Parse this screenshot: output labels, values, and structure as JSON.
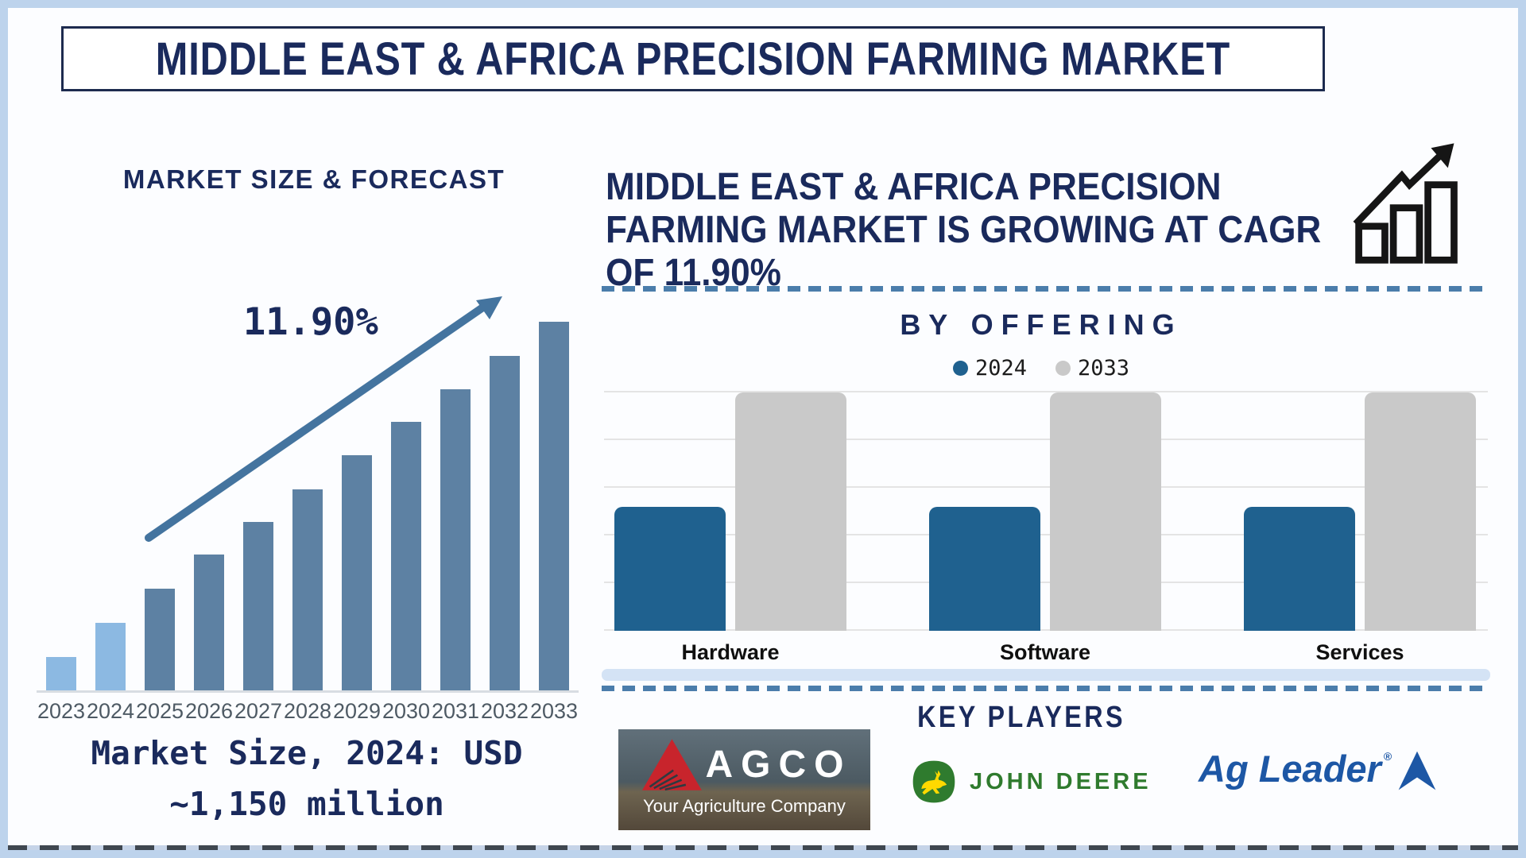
{
  "title_banner": {
    "text": "MIDDLE EAST & AFRICA PRECISION FARMING MARKET"
  },
  "colors": {
    "navy_text": "#1a2a5c",
    "frame_blue": "#bdd3ec",
    "forecast_bar_light": "#8cb9e2",
    "forecast_bar_dark": "#5d81a3",
    "arrow_blue": "#44749f",
    "dashed_line_blue": "#4b7dab",
    "offering_2024_blue": "#1f618f",
    "offering_2033_gray": "#c9c9c9",
    "gridline_gray": "#e4e4e4",
    "agco_red": "#c8242c",
    "john_deere_green": "#2f7b2e",
    "john_deere_yellow": "#ffd900",
    "ag_leader_blue": "#1d57a5",
    "growth_icon_black": "#151515"
  },
  "left_panel": {
    "cagr_label": "11.90%",
    "note_line1": "Market Size, 2024: USD",
    "note_line2": "~1,150 million"
  },
  "right_panel": {
    "headline_lines": [
      "MIDDLE EAST & AFRICA PRECISION",
      "FARMING MARKET IS GROWING AT CAGR",
      "OF 11.90%"
    ],
    "key_players": {
      "title": "KEY PLAYERS",
      "agco": {
        "name": "AGCO",
        "tagline": "Your Agriculture Company"
      },
      "john_deere": {
        "name": "JOHN DEERE"
      },
      "ag_leader": {
        "name": "Ag Leader",
        "reg_mark": "®"
      }
    }
  },
  "chart_data": [
    {
      "type": "bar",
      "title": "MARKET SIZE & FORECAST",
      "categories": [
        "2023",
        "2024",
        "2025",
        "2026",
        "2027",
        "2028",
        "2029",
        "2030",
        "2031",
        "2032",
        "2033"
      ],
      "relative_heights_pct": [
        9.1,
        18.3,
        27.6,
        36.9,
        45.7,
        54.5,
        63.8,
        72.8,
        81.7,
        90.7,
        100
      ],
      "highlight_light_blue_years": [
        "2023",
        "2024"
      ],
      "annotations": {
        "cagr": "11.90%",
        "market_size_2024": "USD ~1,150 million"
      },
      "xlabel": "",
      "ylabel": "",
      "grid": false,
      "value_axis_labels_visible": false
    },
    {
      "type": "bar",
      "title": "BY OFFERING",
      "categories": [
        "Hardware",
        "Software",
        "Services"
      ],
      "series": [
        {
          "name": "2024",
          "color": "#1f618f",
          "relative_heights_pct": [
            52,
            52,
            52
          ]
        },
        {
          "name": "2033",
          "color": "#c9c9c9",
          "relative_heights_pct": [
            100,
            100,
            100
          ]
        }
      ],
      "legend_position": "top",
      "grid": true,
      "value_axis_labels_visible": false
    }
  ]
}
